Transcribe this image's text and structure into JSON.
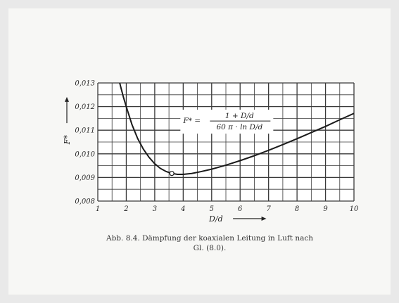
{
  "chart_data": {
    "type": "line",
    "xlabel": "D/d",
    "ylabel": "F*",
    "xlim": [
      1,
      10
    ],
    "ylim": [
      0.008,
      0.013
    ],
    "x_ticks": [
      "1",
      "2",
      "3",
      "4",
      "5",
      "6",
      "7",
      "8",
      "9",
      "10"
    ],
    "y_ticks": [
      "0,008",
      "0,009",
      "0,010",
      "0,011",
      "0,012",
      "0,013"
    ],
    "grid": true,
    "formula": {
      "lhs": "F* =",
      "numerator": "1 + D/d",
      "denominator": "60 π · ln D/d"
    },
    "series": [
      {
        "x": [
          1.73,
          1.8,
          1.9,
          2.0,
          2.2,
          2.4,
          2.6,
          2.8,
          3.0,
          3.2,
          3.4,
          3.6,
          3.8,
          4.0,
          4.3,
          4.6,
          5.0,
          5.5,
          6.0,
          6.5,
          7.0,
          7.5,
          8.0,
          8.5,
          9.0,
          9.5,
          10.0
        ],
        "y": [
          0.0132,
          0.01285,
          0.0124,
          0.012,
          0.01124,
          0.01065,
          0.0102,
          0.00985,
          0.00958,
          0.00938,
          0.00925,
          0.00917,
          0.00913,
          0.00913,
          0.00917,
          0.00924,
          0.00935,
          0.00952,
          0.00971,
          0.00992,
          0.01015,
          0.01039,
          0.01064,
          0.0109,
          0.01116,
          0.01144,
          0.01171
        ]
      }
    ],
    "marker_points": [
      {
        "x": 3.6,
        "y": 0.00917
      }
    ]
  },
  "caption": {
    "line1": "Abb. 8.4. Dämpfung der koaxialen Leitung in Luft nach",
    "line2": "Gl. (8.0)."
  }
}
